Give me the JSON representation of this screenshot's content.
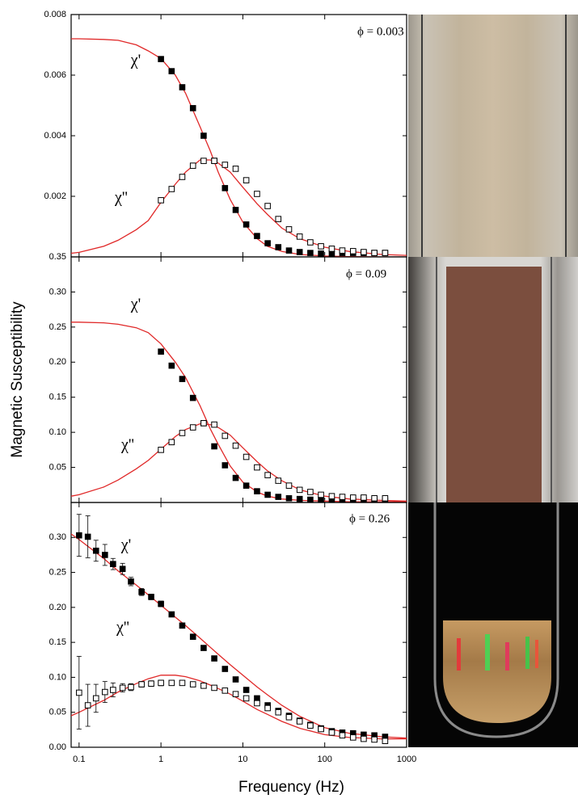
{
  "chart_data": [
    {
      "type": "scatter",
      "annotation": "ϕ = 0.003",
      "xscale": "log",
      "xlim": [
        0.08,
        1000
      ],
      "xticks": [
        0.1,
        1,
        10,
        100,
        1000
      ],
      "xticklabels": false,
      "ylim": [
        0,
        0.008
      ],
      "yticks": [
        0.002,
        0.004,
        0.006,
        0.008
      ],
      "fit_color": "#e02828",
      "fit_x": [
        0.08,
        0.1,
        0.2,
        0.3,
        0.5,
        0.7,
        1,
        1.5,
        2,
        3,
        4,
        5,
        7,
        10,
        15,
        20,
        30,
        50,
        100,
        200,
        500,
        1000
      ],
      "series": [
        {
          "name": "χ'",
          "color": "#000000",
          "marker": "filled",
          "x": [
            1,
            1.35,
            1.82,
            2.46,
            3.32,
            4.48,
            6.05,
            8.17,
            11,
            14.9,
            20.1,
            27.1,
            36.6,
            49.4,
            66.7,
            90,
            122,
            164,
            222,
            299,
            404,
            546
          ],
          "values": [
            0.00653,
            0.00613,
            0.0056,
            0.00491,
            0.004,
            0.00317,
            0.00227,
            0.00155,
            0.00107,
            0.00069,
            0.00045,
            0.00032,
            0.00021,
            0.00016,
            0.00013,
            0.00011,
            0.00011,
            0.00013,
            0.00013,
            0.00013,
            0.00013,
            0.00013
          ],
          "fit_values": [
            0.0072,
            0.0072,
            0.00718,
            0.00715,
            0.007,
            0.0068,
            0.00655,
            0.006,
            0.0054,
            0.0043,
            0.0035,
            0.0028,
            0.0019,
            0.00115,
            0.0006,
            0.00035,
            0.00018,
            8e-05,
            3e-05,
            1e-05,
            0,
            0
          ]
        },
        {
          "name": "χ''",
          "color": "#000000",
          "marker": "open",
          "x": [
            1,
            1.35,
            1.82,
            2.46,
            3.32,
            4.48,
            6.05,
            8.17,
            11,
            14.9,
            20.1,
            27.1,
            36.6,
            49.4,
            66.7,
            90,
            122,
            164,
            222,
            299,
            404,
            546
          ],
          "values": [
            0.00187,
            0.00224,
            0.00264,
            0.00301,
            0.00317,
            0.00317,
            0.00304,
            0.00291,
            0.00253,
            0.00208,
            0.00168,
            0.00125,
            0.00091,
            0.00067,
            0.00048,
            0.00035,
            0.00027,
            0.00021,
            0.00019,
            0.00016,
            0.00013,
            0.00013
          ],
          "fit_values": [
            0.00012,
            0.00015,
            0.00035,
            0.00055,
            0.0009,
            0.0012,
            0.0018,
            0.0024,
            0.0028,
            0.0032,
            0.0032,
            0.0031,
            0.0028,
            0.0023,
            0.00175,
            0.0014,
            0.00095,
            0.0006,
            0.00032,
            0.00018,
            8e-05,
            5e-05
          ]
        }
      ]
    },
    {
      "type": "scatter",
      "annotation": "ϕ = 0.09",
      "ylabel": "Magnetic Susceptibility",
      "xscale": "log",
      "xlim": [
        0.08,
        1000
      ],
      "xticks": [
        0.1,
        1,
        10,
        100,
        1000
      ],
      "xticklabels": false,
      "ylim": [
        0,
        0.35
      ],
      "yticks": [
        0.05,
        {
          "value": 0.1,
          "label": "0.10"
        },
        0.15,
        {
          "value": 0.2,
          "label": "0.20"
        },
        0.25,
        {
          "value": 0.3,
          "label": "0.30"
        },
        0.35
      ],
      "fit_color": "#e02828",
      "fit_x": [
        0.08,
        0.1,
        0.2,
        0.3,
        0.5,
        0.7,
        1,
        1.5,
        2,
        3,
        4,
        5,
        7,
        10,
        15,
        20,
        30,
        50,
        100,
        200,
        500,
        1000
      ],
      "series": [
        {
          "name": "χ'",
          "color": "#000000",
          "marker": "filled",
          "x": [
            1,
            1.35,
            1.82,
            2.46,
            3.32,
            4.48,
            6.05,
            8.17,
            11,
            14.9,
            20.1,
            27.1,
            36.6,
            49.4,
            66.7,
            90,
            122,
            164,
            222,
            299,
            404,
            546
          ],
          "values": [
            0.215,
            0.195,
            0.176,
            0.149,
            0.113,
            0.08,
            0.053,
            0.035,
            0.024,
            0.016,
            0.011,
            0.008,
            0.006,
            0.005,
            0.004,
            0.004,
            0.003,
            0.003,
            0.003,
            0.003,
            0.003,
            0.003
          ],
          "fit_values": [
            0.257,
            0.257,
            0.256,
            0.254,
            0.249,
            0.242,
            0.226,
            0.2,
            0.178,
            0.138,
            0.105,
            0.083,
            0.052,
            0.029,
            0.015,
            0.009,
            0.005,
            0.003,
            0.002,
            0.001,
            0.001,
            0.001
          ]
        },
        {
          "name": "χ''",
          "color": "#000000",
          "marker": "open",
          "x": [
            1,
            1.35,
            1.82,
            2.46,
            3.32,
            4.48,
            6.05,
            8.17,
            11,
            14.9,
            20.1,
            27.1,
            36.6,
            49.4,
            66.7,
            90,
            122,
            164,
            222,
            299,
            404,
            546
          ],
          "values": [
            0.075,
            0.086,
            0.099,
            0.107,
            0.113,
            0.111,
            0.095,
            0.081,
            0.065,
            0.05,
            0.039,
            0.031,
            0.024,
            0.018,
            0.015,
            0.011,
            0.009,
            0.008,
            0.007,
            0.007,
            0.006,
            0.006
          ],
          "fit_values": [
            0.009,
            0.011,
            0.022,
            0.032,
            0.048,
            0.06,
            0.076,
            0.094,
            0.104,
            0.112,
            0.111,
            0.107,
            0.096,
            0.078,
            0.058,
            0.045,
            0.031,
            0.018,
            0.009,
            0.005,
            0.003,
            0.002
          ]
        }
      ]
    },
    {
      "type": "scatter",
      "annotation": "ϕ = 0.26",
      "xlabel": "Frequency (Hz)",
      "xscale": "log",
      "xlim": [
        0.08,
        1000
      ],
      "xticks": [
        0.1,
        1,
        10,
        100,
        1000
      ],
      "xticklabels": true,
      "ylim": [
        0,
        0.35
      ],
      "yticks": [
        {
          "value": 0,
          "label": "0.00"
        },
        0.05,
        {
          "value": 0.1,
          "label": "0.10"
        },
        0.15,
        {
          "value": 0.2,
          "label": "0.20"
        },
        0.25,
        {
          "value": 0.3,
          "label": "0.30"
        }
      ],
      "fit_color": "#e02828",
      "fit_x": [
        0.08,
        0.1,
        0.2,
        0.3,
        0.5,
        0.7,
        1,
        1.5,
        2,
        3,
        4,
        5,
        7,
        10,
        15,
        20,
        30,
        50,
        100,
        200,
        500,
        1000
      ],
      "series": [
        {
          "name": "χ'",
          "color": "#000000",
          "marker": "filled",
          "x": [
            0.1,
            0.128,
            0.161,
            0.207,
            0.26,
            0.34,
            0.43,
            0.58,
            0.76,
            1,
            1.35,
            1.82,
            2.46,
            3.32,
            4.48,
            6.05,
            8.17,
            11,
            14.9,
            20.1,
            27.1,
            36.6,
            49.4,
            66.7,
            90,
            122,
            164,
            222,
            299,
            404,
            546
          ],
          "values": [
            0.303,
            0.301,
            0.281,
            0.275,
            0.262,
            0.255,
            0.237,
            0.222,
            0.215,
            0.205,
            0.19,
            0.174,
            0.158,
            0.142,
            0.127,
            0.112,
            0.097,
            0.082,
            0.07,
            0.06,
            0.052,
            0.045,
            0.038,
            0.032,
            0.027,
            0.023,
            0.021,
            0.02,
            0.018,
            0.017,
            0.015
          ],
          "errors": [
            0.03,
            0.03,
            0.015,
            0.015,
            0.008,
            0.008,
            0.006,
            0.005,
            0.004,
            0.004,
            0.003,
            0.003,
            0.003,
            0.003,
            0.003,
            0.003,
            0.003,
            0.003,
            0.003,
            0.003,
            0.003,
            0.003,
            0.003,
            0.003,
            0.003,
            0.003,
            0.003,
            0.003,
            0.003,
            0.003,
            0.003
          ],
          "fit_values": [
            0.305,
            0.297,
            0.27,
            0.252,
            0.232,
            0.218,
            0.203,
            0.186,
            0.174,
            0.156,
            0.143,
            0.133,
            0.118,
            0.103,
            0.086,
            0.075,
            0.06,
            0.044,
            0.028,
            0.02,
            0.015,
            0.013
          ]
        },
        {
          "name": "χ''",
          "color": "#000000",
          "marker": "open",
          "x": [
            0.1,
            0.128,
            0.161,
            0.207,
            0.26,
            0.34,
            0.43,
            0.58,
            0.76,
            1,
            1.35,
            1.82,
            2.46,
            3.32,
            4.48,
            6.05,
            8.17,
            11,
            14.9,
            20.1,
            27.1,
            36.6,
            49.4,
            66.7,
            90,
            122,
            164,
            222,
            299,
            404,
            546
          ],
          "values": [
            0.078,
            0.06,
            0.07,
            0.079,
            0.082,
            0.085,
            0.086,
            0.09,
            0.091,
            0.092,
            0.092,
            0.092,
            0.09,
            0.088,
            0.085,
            0.081,
            0.076,
            0.07,
            0.063,
            0.056,
            0.05,
            0.043,
            0.037,
            0.031,
            0.026,
            0.021,
            0.017,
            0.014,
            0.012,
            0.011,
            0.009
          ],
          "errors": [
            0.052,
            0.03,
            0.02,
            0.015,
            0.01,
            0.006,
            0.005,
            0.004,
            0.004,
            0.004,
            0.003,
            0.003,
            0.003,
            0.003,
            0.003,
            0.003,
            0.003,
            0.003,
            0.003,
            0.003,
            0.003,
            0.003,
            0.003,
            0.003,
            0.003,
            0.003,
            0.003,
            0.003,
            0.003,
            0.003,
            0.003
          ],
          "fit_values": [
            0.045,
            0.05,
            0.067,
            0.079,
            0.091,
            0.098,
            0.103,
            0.103,
            0.101,
            0.095,
            0.089,
            0.084,
            0.076,
            0.066,
            0.054,
            0.047,
            0.037,
            0.027,
            0.018,
            0.014,
            0.012,
            0.012
          ]
        }
      ]
    }
  ]
}
